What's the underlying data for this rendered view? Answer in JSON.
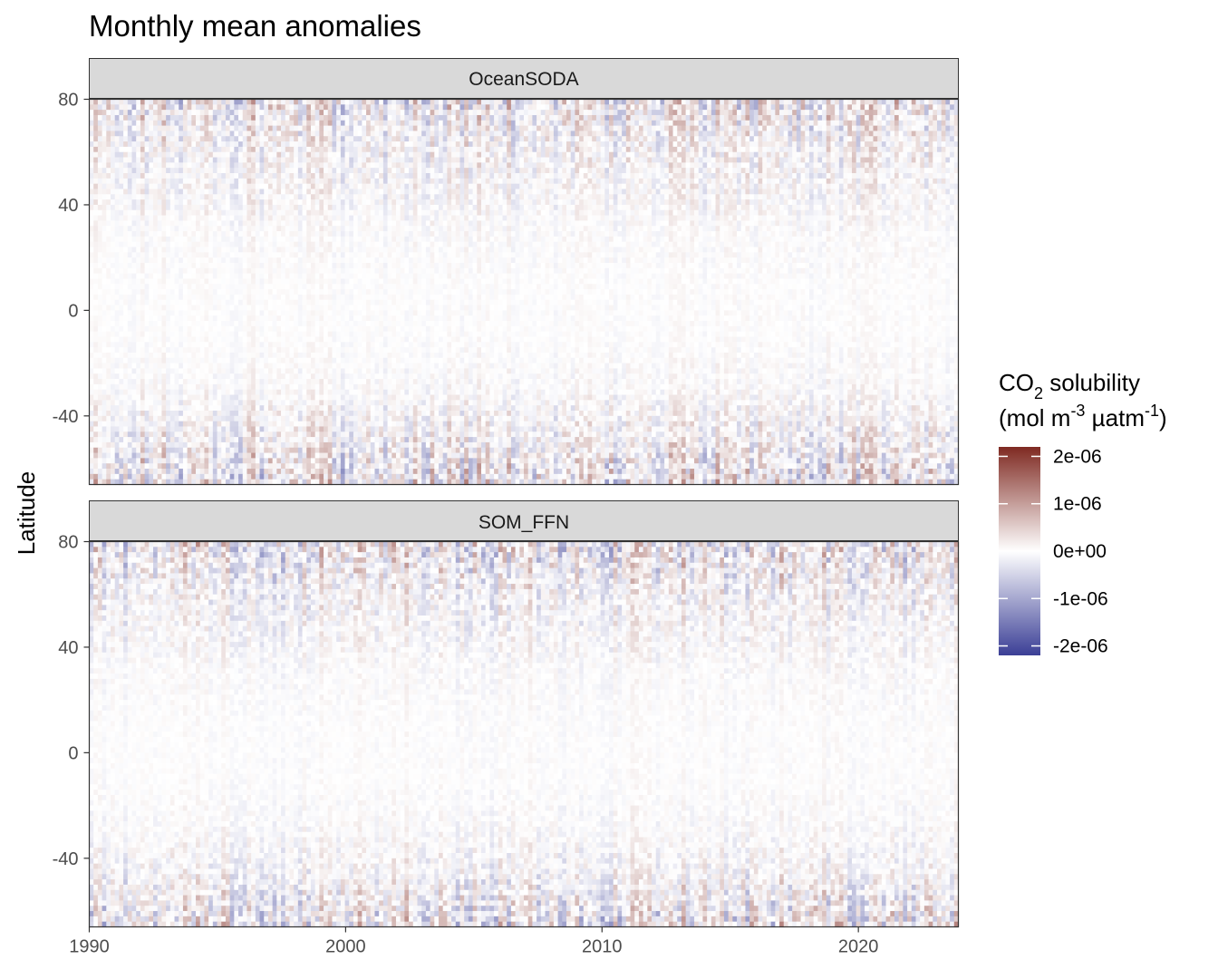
{
  "chart_data": {
    "type": "heatmap",
    "title": "Monthly mean anomalies",
    "xlabel": "",
    "ylabel": "Latitude",
    "x_range": [
      1990,
      2023.9
    ],
    "y_range": [
      -66,
      80
    ],
    "x_ticks": [
      1990,
      2000,
      2010,
      2020
    ],
    "y_ticks": [
      80,
      40,
      0,
      -40
    ],
    "y_tick_labels": [
      "80",
      "40",
      "0",
      "-40"
    ],
    "grid": false,
    "legend_position": "right",
    "legend": {
      "title_main": "CO",
      "title_sub": "2",
      "title_rest": " solubility",
      "unit_prefix": "(mol m",
      "unit_exp1": "-3",
      "unit_mid": " µatm",
      "unit_exp2": "-1",
      "unit_suffix": ")",
      "scale_limits": [
        -2.2e-06,
        2.2e-06
      ],
      "break_values": [
        2e-06,
        1e-06,
        0,
        -1e-06,
        -2e-06
      ],
      "break_labels": [
        "2e-06",
        "1e-06",
        "0e+00",
        "-1e-06",
        "-2e-06"
      ],
      "colors": {
        "low": "#3b3f96",
        "mid": "#ffffff",
        "high": "#7f2a22"
      }
    },
    "panels": [
      {
        "name": "OceanSODA",
        "row_latitudes": [
          -66,
          -55,
          -45,
          -30,
          -10,
          10,
          30,
          45,
          60,
          70,
          80
        ],
        "row_amplitudes_mol_m3_uatm": [
          1.2e-06,
          9e-07,
          6e-07,
          2.5e-07,
          1.2e-07,
          1.2e-07,
          2e-07,
          4e-07,
          6e-07,
          8e-07,
          1.1e-06
        ]
      },
      {
        "name": "SOM_FFN",
        "row_latitudes": [
          -66,
          -55,
          -45,
          -30,
          -10,
          10,
          30,
          45,
          60,
          70,
          80
        ],
        "row_amplitudes_mol_m3_uatm": [
          1.2e-06,
          8e-07,
          5e-07,
          2.5e-07,
          1.2e-07,
          1.2e-07,
          2e-07,
          4e-07,
          6e-07,
          9e-07,
          1.2e-06
        ]
      }
    ]
  }
}
